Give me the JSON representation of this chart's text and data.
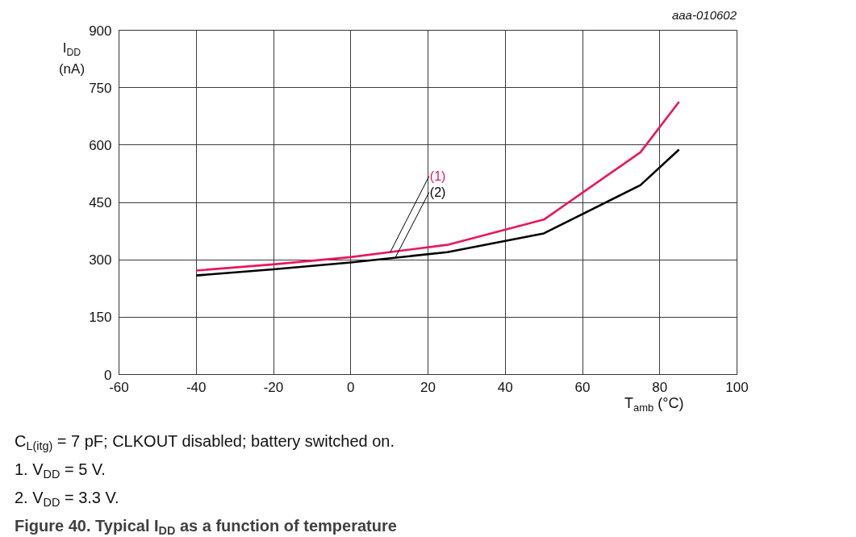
{
  "chart_data": {
    "type": "line",
    "title": "Figure 40. Typical I$_{DD}$ as a function of temperature",
    "xlabel": "T$_{amb}$ (°C)",
    "ylabel": "I$_{DD}$ (nA)",
    "annotations": [
      "aaa-010602",
      "C$_{L(itg)}$ = 7 pF; CLKOUT disabled; battery switched on.",
      "1. V$_{DD}$ = 5 V.",
      "2. V$_{DD}$ = 3.3 V."
    ],
    "x": [
      -40,
      -20,
      0,
      25,
      50,
      75,
      85
    ],
    "series": [
      {
        "name": "(1)",
        "color": "#e8175d",
        "values": [
          272,
          288,
          307,
          339,
          405,
          581,
          713
        ]
      },
      {
        "name": "(2)",
        "color": "#000000",
        "values": [
          259,
          275,
          293,
          320,
          369,
          495,
          588
        ]
      }
    ],
    "xlim": [
      -60,
      100
    ],
    "xticks": [
      -60,
      -40,
      -20,
      0,
      20,
      40,
      60,
      80,
      100
    ],
    "ylim": [
      0,
      900
    ],
    "yticks": [
      0,
      150,
      300,
      450,
      600,
      750,
      900
    ],
    "grid": true
  }
}
